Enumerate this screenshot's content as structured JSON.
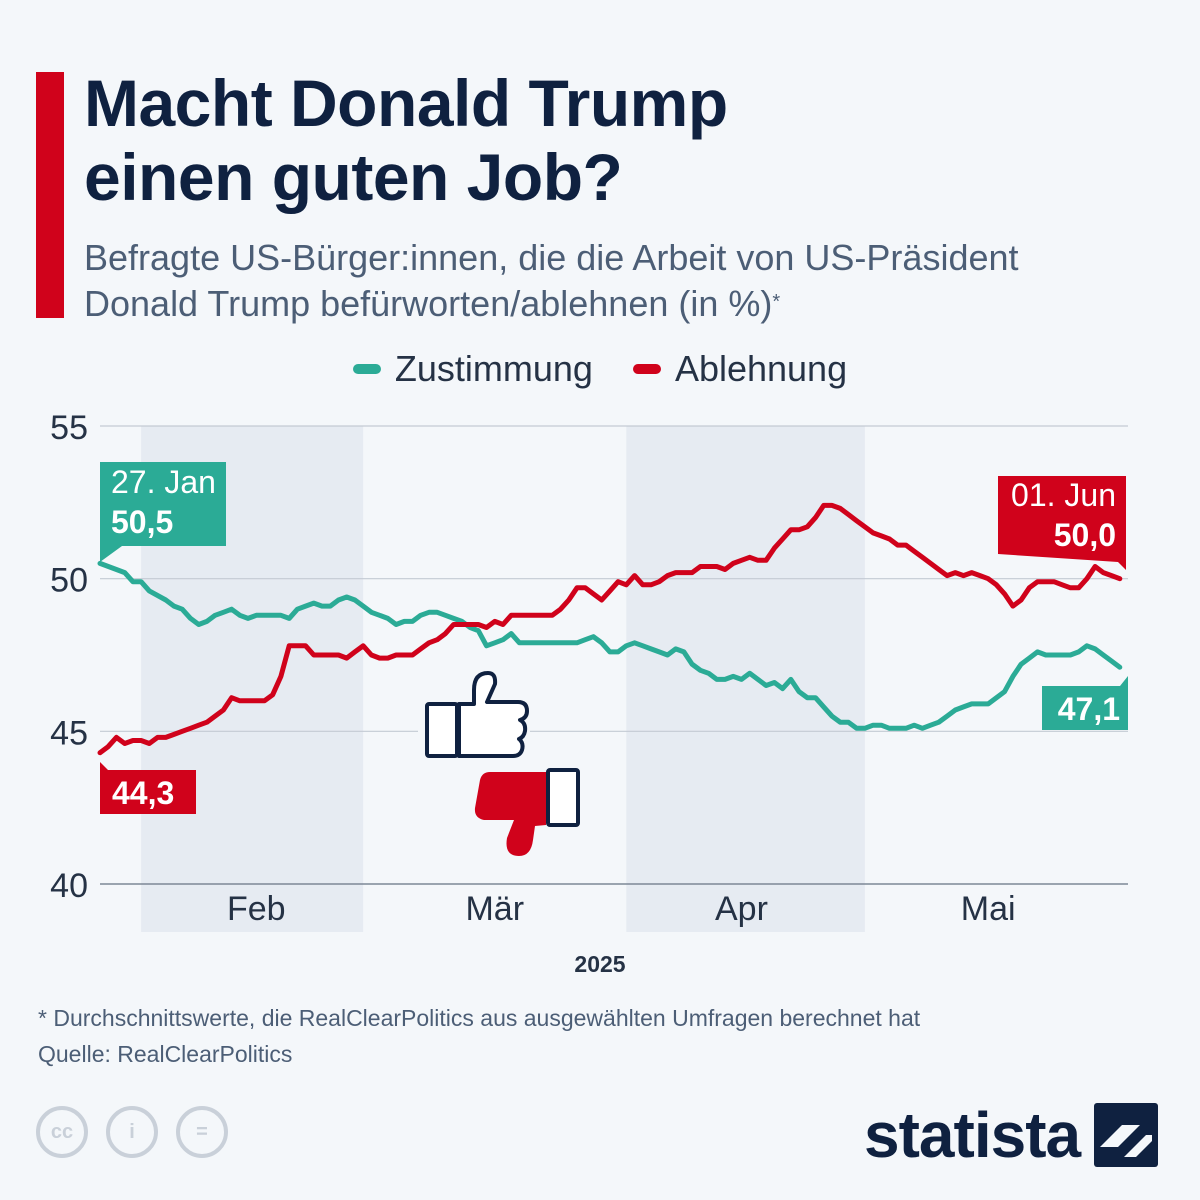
{
  "header": {
    "title_line1": "Macht Donald Trump",
    "title_line2": "einen guten Job?",
    "subtitle_line1": "Befragte US-Bürger:innen, die die Arbeit von US-Präsident",
    "subtitle_line2": "Donald Trump befürworten/ablehnen (in %)",
    "subtitle_mark": "*"
  },
  "colors": {
    "approve": "#2bab96",
    "disapprove": "#d0021b",
    "accent": "#d0021b",
    "text": "#0f2140"
  },
  "chart_data": {
    "type": "line",
    "title": "Macht Donald Trump einen guten Job?",
    "xlabel": "2025",
    "ylabel": "",
    "ylim": [
      40,
      55
    ],
    "yticks": [
      "40",
      "45",
      "50",
      "55"
    ],
    "x_start_day": 27,
    "x_end_day": 152,
    "month_labels": [
      {
        "label": "Feb",
        "day": 46
      },
      {
        "label": "Mär",
        "day": 75
      },
      {
        "label": "Apr",
        "day": 105
      },
      {
        "label": "Mai",
        "day": 135
      }
    ],
    "shaded_ranges": [
      [
        32,
        59
      ],
      [
        91,
        120
      ],
      [
        152,
        153
      ]
    ],
    "series": [
      {
        "name": "Zustimmung",
        "color": "#2bab96",
        "start_label": "27. Jan",
        "start_value": "50,5",
        "end_value": "47,1",
        "points": [
          [
            27,
            50.5
          ],
          [
            29,
            50.3
          ],
          [
            30,
            50.2
          ],
          [
            31,
            49.9
          ],
          [
            32,
            49.9
          ],
          [
            33,
            49.6
          ],
          [
            35,
            49.3
          ],
          [
            36,
            49.1
          ],
          [
            37,
            49.0
          ],
          [
            38,
            48.7
          ],
          [
            39,
            48.5
          ],
          [
            40,
            48.6
          ],
          [
            41,
            48.8
          ],
          [
            42,
            48.9
          ],
          [
            43,
            49.0
          ],
          [
            44,
            48.8
          ],
          [
            45,
            48.7
          ],
          [
            46,
            48.8
          ],
          [
            47,
            48.8
          ],
          [
            48,
            48.8
          ],
          [
            49,
            48.8
          ],
          [
            50,
            48.7
          ],
          [
            51,
            49.0
          ],
          [
            52,
            49.1
          ],
          [
            53,
            49.2
          ],
          [
            54,
            49.1
          ],
          [
            55,
            49.1
          ],
          [
            56,
            49.3
          ],
          [
            57,
            49.4
          ],
          [
            58,
            49.3
          ],
          [
            59,
            49.1
          ],
          [
            60,
            48.9
          ],
          [
            61,
            48.8
          ],
          [
            62,
            48.7
          ],
          [
            63,
            48.5
          ],
          [
            64,
            48.6
          ],
          [
            65,
            48.6
          ],
          [
            66,
            48.8
          ],
          [
            67,
            48.9
          ],
          [
            68,
            48.9
          ],
          [
            69,
            48.8
          ],
          [
            70,
            48.7
          ],
          [
            71,
            48.6
          ],
          [
            72,
            48.4
          ],
          [
            73,
            48.3
          ],
          [
            74,
            47.8
          ],
          [
            75,
            47.9
          ],
          [
            76,
            48.0
          ],
          [
            77,
            48.2
          ],
          [
            78,
            47.9
          ],
          [
            79,
            47.9
          ],
          [
            80,
            47.9
          ],
          [
            81,
            47.9
          ],
          [
            82,
            47.9
          ],
          [
            83,
            47.9
          ],
          [
            84,
            47.9
          ],
          [
            85,
            47.9
          ],
          [
            86,
            48.0
          ],
          [
            87,
            48.1
          ],
          [
            88,
            47.9
          ],
          [
            89,
            47.6
          ],
          [
            90,
            47.6
          ],
          [
            91,
            47.8
          ],
          [
            92,
            47.9
          ],
          [
            93,
            47.8
          ],
          [
            94,
            47.7
          ],
          [
            95,
            47.6
          ],
          [
            96,
            47.5
          ],
          [
            97,
            47.7
          ],
          [
            98,
            47.6
          ],
          [
            99,
            47.2
          ],
          [
            100,
            47.0
          ],
          [
            101,
            46.9
          ],
          [
            102,
            46.7
          ],
          [
            103,
            46.7
          ],
          [
            104,
            46.8
          ],
          [
            105,
            46.7
          ],
          [
            106,
            46.9
          ],
          [
            107,
            46.7
          ],
          [
            108,
            46.5
          ],
          [
            109,
            46.6
          ],
          [
            110,
            46.4
          ],
          [
            111,
            46.7
          ],
          [
            112,
            46.3
          ],
          [
            113,
            46.1
          ],
          [
            114,
            46.1
          ],
          [
            115,
            45.8
          ],
          [
            116,
            45.5
          ],
          [
            117,
            45.3
          ],
          [
            118,
            45.3
          ],
          [
            119,
            45.1
          ],
          [
            120,
            45.1
          ],
          [
            121,
            45.2
          ],
          [
            122,
            45.2
          ],
          [
            123,
            45.1
          ],
          [
            124,
            45.1
          ],
          [
            125,
            45.1
          ],
          [
            126,
            45.2
          ],
          [
            127,
            45.1
          ],
          [
            128,
            45.2
          ],
          [
            129,
            45.3
          ],
          [
            130,
            45.5
          ],
          [
            131,
            45.7
          ],
          [
            132,
            45.8
          ],
          [
            133,
            45.9
          ],
          [
            134,
            45.9
          ],
          [
            135,
            45.9
          ],
          [
            136,
            46.1
          ],
          [
            137,
            46.3
          ],
          [
            138,
            46.8
          ],
          [
            139,
            47.2
          ],
          [
            140,
            47.4
          ],
          [
            141,
            47.6
          ],
          [
            142,
            47.5
          ],
          [
            143,
            47.5
          ],
          [
            144,
            47.5
          ],
          [
            145,
            47.5
          ],
          [
            146,
            47.6
          ],
          [
            147,
            47.8
          ],
          [
            148,
            47.7
          ],
          [
            149,
            47.5
          ],
          [
            150,
            47.3
          ],
          [
            151,
            47.1
          ]
        ]
      },
      {
        "name": "Ablehnung",
        "color": "#d0021b",
        "start_value": "44,3",
        "end_label": "01. Jun",
        "end_value": "50,0",
        "points": [
          [
            27,
            44.3
          ],
          [
            28,
            44.5
          ],
          [
            29,
            44.8
          ],
          [
            30,
            44.6
          ],
          [
            31,
            44.7
          ],
          [
            32,
            44.7
          ],
          [
            33,
            44.6
          ],
          [
            34,
            44.8
          ],
          [
            35,
            44.8
          ],
          [
            36,
            44.9
          ],
          [
            37,
            45.0
          ],
          [
            38,
            45.1
          ],
          [
            39,
            45.2
          ],
          [
            40,
            45.3
          ],
          [
            41,
            45.5
          ],
          [
            42,
            45.7
          ],
          [
            43,
            46.1
          ],
          [
            44,
            46.0
          ],
          [
            45,
            46.0
          ],
          [
            46,
            46.0
          ],
          [
            47,
            46.0
          ],
          [
            48,
            46.2
          ],
          [
            49,
            46.8
          ],
          [
            50,
            47.8
          ],
          [
            51,
            47.8
          ],
          [
            52,
            47.8
          ],
          [
            53,
            47.5
          ],
          [
            54,
            47.5
          ],
          [
            55,
            47.5
          ],
          [
            56,
            47.5
          ],
          [
            57,
            47.4
          ],
          [
            58,
            47.6
          ],
          [
            59,
            47.8
          ],
          [
            60,
            47.5
          ],
          [
            61,
            47.4
          ],
          [
            62,
            47.4
          ],
          [
            63,
            47.5
          ],
          [
            64,
            47.5
          ],
          [
            65,
            47.5
          ],
          [
            66,
            47.7
          ],
          [
            67,
            47.9
          ],
          [
            68,
            48.0
          ],
          [
            69,
            48.2
          ],
          [
            70,
            48.5
          ],
          [
            71,
            48.5
          ],
          [
            72,
            48.5
          ],
          [
            73,
            48.5
          ],
          [
            74,
            48.4
          ],
          [
            75,
            48.6
          ],
          [
            76,
            48.5
          ],
          [
            77,
            48.8
          ],
          [
            78,
            48.8
          ],
          [
            79,
            48.8
          ],
          [
            80,
            48.8
          ],
          [
            81,
            48.8
          ],
          [
            82,
            48.8
          ],
          [
            83,
            49.0
          ],
          [
            84,
            49.3
          ],
          [
            85,
            49.7
          ],
          [
            86,
            49.7
          ],
          [
            87,
            49.5
          ],
          [
            88,
            49.3
          ],
          [
            89,
            49.6
          ],
          [
            90,
            49.9
          ],
          [
            91,
            49.8
          ],
          [
            92,
            50.1
          ],
          [
            93,
            49.8
          ],
          [
            94,
            49.8
          ],
          [
            95,
            49.9
          ],
          [
            96,
            50.1
          ],
          [
            97,
            50.2
          ],
          [
            98,
            50.2
          ],
          [
            99,
            50.2
          ],
          [
            100,
            50.4
          ],
          [
            101,
            50.4
          ],
          [
            102,
            50.4
          ],
          [
            103,
            50.3
          ],
          [
            104,
            50.5
          ],
          [
            105,
            50.6
          ],
          [
            106,
            50.7
          ],
          [
            107,
            50.6
          ],
          [
            108,
            50.6
          ],
          [
            109,
            51.0
          ],
          [
            110,
            51.3
          ],
          [
            111,
            51.6
          ],
          [
            112,
            51.6
          ],
          [
            113,
            51.7
          ],
          [
            114,
            52.0
          ],
          [
            115,
            52.4
          ],
          [
            116,
            52.4
          ],
          [
            117,
            52.3
          ],
          [
            118,
            52.1
          ],
          [
            119,
            51.9
          ],
          [
            120,
            51.7
          ],
          [
            121,
            51.5
          ],
          [
            122,
            51.4
          ],
          [
            123,
            51.3
          ],
          [
            124,
            51.1
          ],
          [
            125,
            51.1
          ],
          [
            126,
            50.9
          ],
          [
            127,
            50.7
          ],
          [
            128,
            50.5
          ],
          [
            129,
            50.3
          ],
          [
            130,
            50.1
          ],
          [
            131,
            50.2
          ],
          [
            132,
            50.1
          ],
          [
            133,
            50.2
          ],
          [
            134,
            50.1
          ],
          [
            135,
            50.0
          ],
          [
            136,
            49.8
          ],
          [
            137,
            49.5
          ],
          [
            138,
            49.1
          ],
          [
            139,
            49.3
          ],
          [
            140,
            49.7
          ],
          [
            141,
            49.9
          ],
          [
            142,
            49.9
          ],
          [
            143,
            49.9
          ],
          [
            144,
            49.8
          ],
          [
            145,
            49.7
          ],
          [
            146,
            49.7
          ],
          [
            147,
            50.0
          ],
          [
            148,
            50.4
          ],
          [
            149,
            50.2
          ],
          [
            150,
            50.1
          ],
          [
            151,
            50.0
          ]
        ]
      }
    ]
  },
  "footnote": {
    "note": "* Durchschnittswerte, die RealClearPolitics aus ausgewählten Umfragen berechnet hat",
    "source": "Quelle: RealClearPolitics"
  },
  "license_icons": [
    "cc",
    "i",
    "="
  ],
  "brand": {
    "name": "statista"
  }
}
